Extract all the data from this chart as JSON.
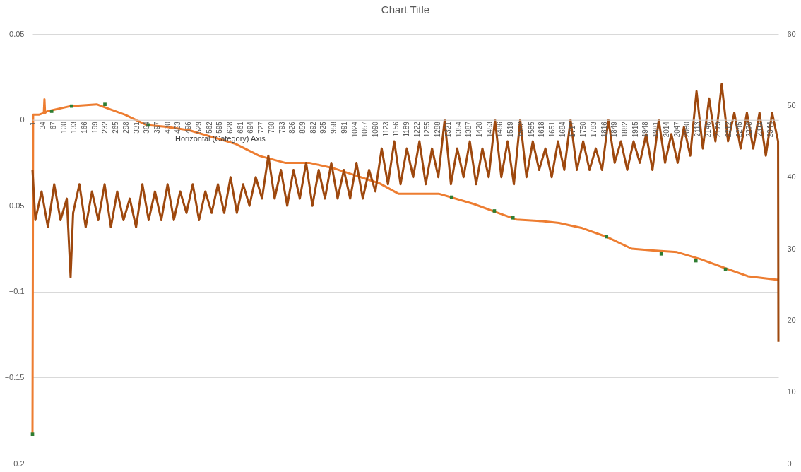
{
  "chart_data": {
    "type": "line",
    "title": "Chart Title",
    "annotations": [
      "Horizontal (Category) Axis"
    ],
    "grid": "y",
    "xlim": [
      1,
      2370
    ],
    "xticks": [
      1,
      34,
      67,
      100,
      133,
      166,
      199,
      232,
      265,
      298,
      331,
      364,
      397,
      430,
      463,
      496,
      529,
      562,
      595,
      628,
      661,
      694,
      727,
      760,
      793,
      826,
      859,
      892,
      925,
      958,
      991,
      1024,
      1057,
      1090,
      1123,
      1156,
      1189,
      1222,
      1255,
      1288,
      1321,
      1354,
      1387,
      1420,
      1453,
      1486,
      1519,
      1552,
      1585,
      1618,
      1651,
      1684,
      1717,
      1750,
      1783,
      1816,
      1849,
      1882,
      1915,
      1948,
      1981,
      2014,
      2047,
      2080,
      2113,
      2146,
      2179,
      2212,
      2245,
      2278,
      2311,
      2344
    ],
    "ylim": [
      -0.2,
      0.05
    ],
    "yticks": [
      -0.2,
      -0.15,
      -0.1,
      -0.05,
      0,
      0.05
    ],
    "y2lim": [
      0,
      60
    ],
    "y2ticks": [
      0,
      10,
      20,
      30,
      40,
      50,
      60
    ],
    "series": [
      {
        "color": "#ed7d31",
        "x": [
          1,
          3,
          21,
          37,
          39,
          41,
          48,
          122,
          205,
          235,
          295,
          363,
          421,
          498,
          646,
          722,
          803,
          880,
          954,
          1104,
          1163,
          1291,
          1329,
          1403,
          1477,
          1538,
          1621,
          1673,
          1747,
          1823,
          1904,
          1972,
          2048,
          2122,
          2196,
          2273,
          2363,
          2370
        ],
        "values": [
          -0.183,
          0.003,
          0.003,
          0.004,
          0.012,
          0.004,
          0.005,
          0.008,
          0.009,
          0.007,
          0.003,
          -0.003,
          -0.004,
          -0.006,
          -0.014,
          -0.021,
          -0.025,
          -0.025,
          -0.028,
          -0.037,
          -0.043,
          -0.043,
          -0.045,
          -0.049,
          -0.054,
          -0.058,
          -0.059,
          -0.06,
          -0.063,
          -0.068,
          -0.075,
          -0.076,
          -0.077,
          -0.081,
          -0.086,
          -0.091,
          -0.093,
          -0.093
        ]
      },
      {
        "type": "scatter",
        "marker": "square",
        "color": "#2e7d32",
        "x": [
          1,
          62,
          125,
          231,
          368,
          1332,
          1468,
          1527,
          1824,
          1998,
          2108,
          2202
        ],
        "values": [
          -0.183,
          0.005,
          0.008,
          0.009,
          -0.003,
          -0.045,
          -0.053,
          -0.057,
          -0.068,
          -0.078,
          -0.082,
          -0.087
        ]
      },
      {
        "color": "#9e480e",
        "axis": "y2",
        "x": [
          1,
          10,
          30,
          50,
          70,
          90,
          110,
          122,
          130,
          150,
          170,
          190,
          210,
          230,
          250,
          270,
          290,
          310,
          330,
          350,
          370,
          390,
          410,
          430,
          450,
          470,
          490,
          510,
          530,
          550,
          570,
          590,
          610,
          630,
          650,
          670,
          690,
          710,
          730,
          750,
          770,
          790,
          810,
          830,
          850,
          870,
          890,
          910,
          930,
          950,
          970,
          990,
          1010,
          1030,
          1050,
          1070,
          1090,
          1110,
          1130,
          1150,
          1170,
          1190,
          1210,
          1230,
          1250,
          1270,
          1290,
          1310,
          1330,
          1350,
          1370,
          1390,
          1410,
          1430,
          1450,
          1470,
          1490,
          1510,
          1530,
          1550,
          1570,
          1590,
          1610,
          1630,
          1650,
          1670,
          1690,
          1710,
          1730,
          1750,
          1770,
          1790,
          1810,
          1830,
          1850,
          1870,
          1890,
          1910,
          1930,
          1950,
          1970,
          1990,
          2010,
          2030,
          2050,
          2070,
          2090,
          2110,
          2130,
          2150,
          2170,
          2190,
          2210,
          2230,
          2250,
          2270,
          2290,
          2310,
          2330,
          2350,
          2369,
          2370
        ],
        "values": [
          41,
          34,
          38,
          33,
          39,
          34,
          37,
          26,
          35,
          39,
          33,
          38,
          34,
          39,
          33,
          38,
          34,
          37,
          33,
          39,
          34,
          38,
          34,
          39,
          34,
          38,
          35,
          39,
          34,
          38,
          35,
          39,
          35,
          40,
          35,
          39,
          36,
          40,
          37,
          43,
          37,
          41,
          36,
          41,
          37,
          42,
          36,
          41,
          37,
          42,
          37,
          41,
          37,
          42,
          37,
          41,
          38,
          44,
          39,
          45,
          39,
          44,
          40,
          45,
          39,
          44,
          40,
          48,
          39,
          44,
          40,
          45,
          39,
          44,
          40,
          48,
          40,
          45,
          39,
          48,
          40,
          45,
          41,
          44,
          40,
          45,
          41,
          48,
          41,
          45,
          41,
          44,
          41,
          48,
          42,
          45,
          41,
          45,
          42,
          46,
          41,
          48,
          42,
          46,
          42,
          47,
          43,
          52,
          44,
          51,
          45,
          53,
          45,
          49,
          44,
          49,
          44,
          49,
          43,
          49,
          45,
          17
        ]
      }
    ]
  }
}
